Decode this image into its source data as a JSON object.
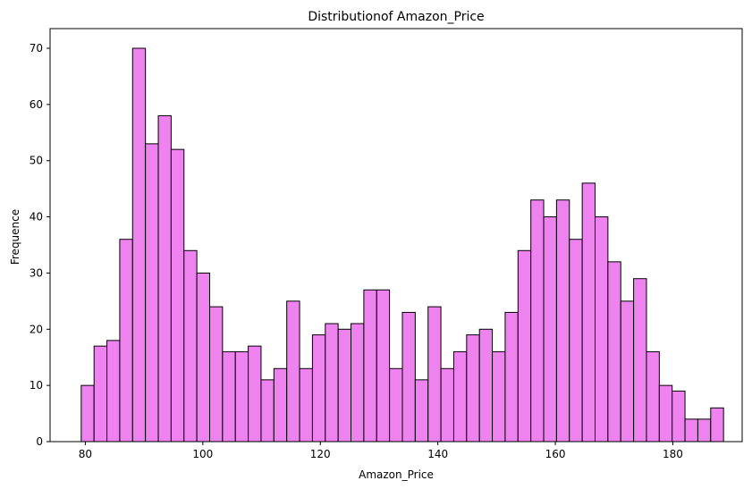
{
  "chart_data": {
    "type": "bar",
    "title": "Distributionof Amazon_Price",
    "xlabel": "Amazon_Price",
    "ylabel": "Frequence",
    "bin_start": 79.3,
    "bin_width": 2.1866,
    "values": [
      10,
      17,
      18,
      36,
      70,
      53,
      58,
      52,
      34,
      30,
      24,
      16,
      16,
      17,
      11,
      13,
      25,
      13,
      19,
      21,
      20,
      21,
      27,
      27,
      13,
      23,
      11,
      24,
      13,
      16,
      19,
      20,
      16,
      23,
      34,
      43,
      40,
      43,
      36,
      46,
      40,
      32,
      25,
      29,
      16,
      10,
      9,
      4,
      4,
      6
    ],
    "xlim": [
      74.0,
      191.8
    ],
    "ylim": [
      0,
      73.5
    ],
    "xticks": [
      80,
      100,
      120,
      140,
      160,
      180
    ],
    "yticks": [
      0,
      10,
      20,
      30,
      40,
      50,
      60,
      70
    ],
    "bar_color": "#ee82ee",
    "edge_color": "#000000",
    "grid": false,
    "legend": "none"
  }
}
